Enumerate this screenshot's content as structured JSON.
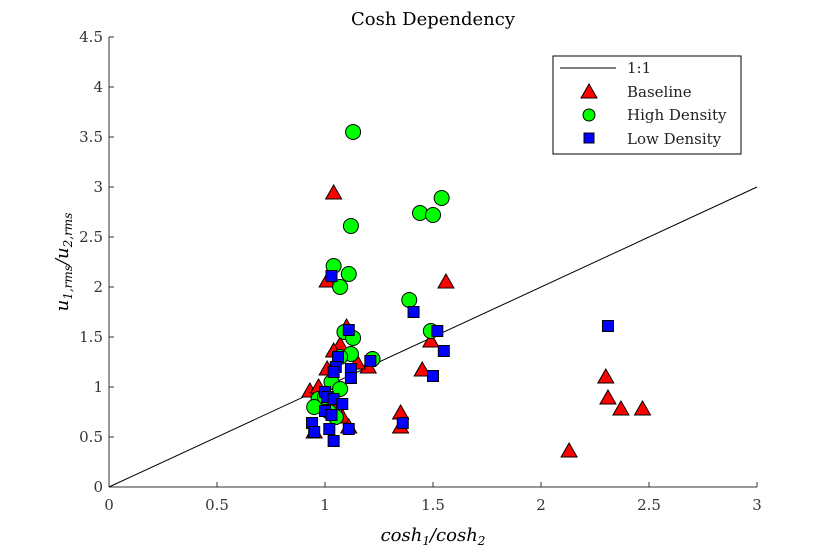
{
  "chart_data": {
    "type": "scatter",
    "title": "Cosh Dependency",
    "xlabel": "cosh_1/cosh_2",
    "ylabel": "u_1,rms/u_2,rms",
    "xlim": [
      0,
      3
    ],
    "ylim": [
      0,
      4.5
    ],
    "xticks": [
      0,
      0.5,
      1,
      1.5,
      2,
      2.5,
      3
    ],
    "yticks": [
      0,
      0.5,
      1,
      1.5,
      2,
      2.5,
      3,
      3.5,
      4,
      4.5
    ],
    "xtick_labels": [
      "0",
      "0.5",
      "1",
      "1.5",
      "2",
      "2.5",
      "3"
    ],
    "ytick_labels": [
      "0",
      "0.5",
      "1",
      "1.5",
      "2",
      "2.5",
      "3",
      "3.5",
      "4",
      "4.5"
    ],
    "grid": false,
    "legend_position": "top-right",
    "reference_line": {
      "name": "1:1",
      "x": [
        0,
        3
      ],
      "y": [
        0,
        3
      ],
      "color": "#000000"
    },
    "series": [
      {
        "name": "Baseline",
        "marker": "triangle",
        "color": "#ff0000",
        "points": [
          [
            1.04,
            2.94
          ],
          [
            1.56,
            2.05
          ],
          [
            1.01,
            2.06
          ],
          [
            1.1,
            1.6
          ],
          [
            1.07,
            1.42
          ],
          [
            1.04,
            1.36
          ],
          [
            1.49,
            1.46
          ],
          [
            1.2,
            1.2
          ],
          [
            1.15,
            1.24
          ],
          [
            1.45,
            1.17
          ],
          [
            1.01,
            1.18
          ],
          [
            0.93,
            0.96
          ],
          [
            0.97,
            1.0
          ],
          [
            1.05,
            0.85
          ],
          [
            1.08,
            0.7
          ],
          [
            1.11,
            0.6
          ],
          [
            1.35,
            0.74
          ],
          [
            1.35,
            0.6
          ],
          [
            0.95,
            0.55
          ],
          [
            2.13,
            0.36
          ],
          [
            2.3,
            1.1
          ],
          [
            2.31,
            0.89
          ],
          [
            2.37,
            0.78
          ],
          [
            2.47,
            0.78
          ]
        ]
      },
      {
        "name": "High Density",
        "marker": "circle",
        "color": "#00ff00",
        "points": [
          [
            1.13,
            3.55
          ],
          [
            1.54,
            2.89
          ],
          [
            1.44,
            2.74
          ],
          [
            1.5,
            2.72
          ],
          [
            1.12,
            2.61
          ],
          [
            1.04,
            2.21
          ],
          [
            1.11,
            2.13
          ],
          [
            1.07,
            2.0
          ],
          [
            1.39,
            1.87
          ],
          [
            1.49,
            1.56
          ],
          [
            1.09,
            1.55
          ],
          [
            1.13,
            1.49
          ],
          [
            1.22,
            1.28
          ],
          [
            1.12,
            1.33
          ],
          [
            1.07,
            1.3
          ],
          [
            1.03,
            1.05
          ],
          [
            1.07,
            0.98
          ],
          [
            0.97,
            0.88
          ],
          [
            1.0,
            0.9
          ],
          [
            0.95,
            0.8
          ],
          [
            1.02,
            0.75
          ],
          [
            1.05,
            0.7
          ]
        ]
      },
      {
        "name": "Low Density",
        "marker": "square",
        "color": "#0000ff",
        "points": [
          [
            1.03,
            2.11
          ],
          [
            1.41,
            1.75
          ],
          [
            2.31,
            1.61
          ],
          [
            1.11,
            1.57
          ],
          [
            1.52,
            1.56
          ],
          [
            1.55,
            1.36
          ],
          [
            1.06,
            1.3
          ],
          [
            1.21,
            1.26
          ],
          [
            1.05,
            1.2
          ],
          [
            1.04,
            1.15
          ],
          [
            1.12,
            1.18
          ],
          [
            1.12,
            1.09
          ],
          [
            1.5,
            1.11
          ],
          [
            1.0,
            0.95
          ],
          [
            1.01,
            0.9
          ],
          [
            1.04,
            0.88
          ],
          [
            1.08,
            0.83
          ],
          [
            1.0,
            0.76
          ],
          [
            1.03,
            0.72
          ],
          [
            0.94,
            0.64
          ],
          [
            1.36,
            0.64
          ],
          [
            1.11,
            0.58
          ],
          [
            1.02,
            0.58
          ],
          [
            0.95,
            0.55
          ],
          [
            1.04,
            0.46
          ]
        ]
      }
    ]
  }
}
